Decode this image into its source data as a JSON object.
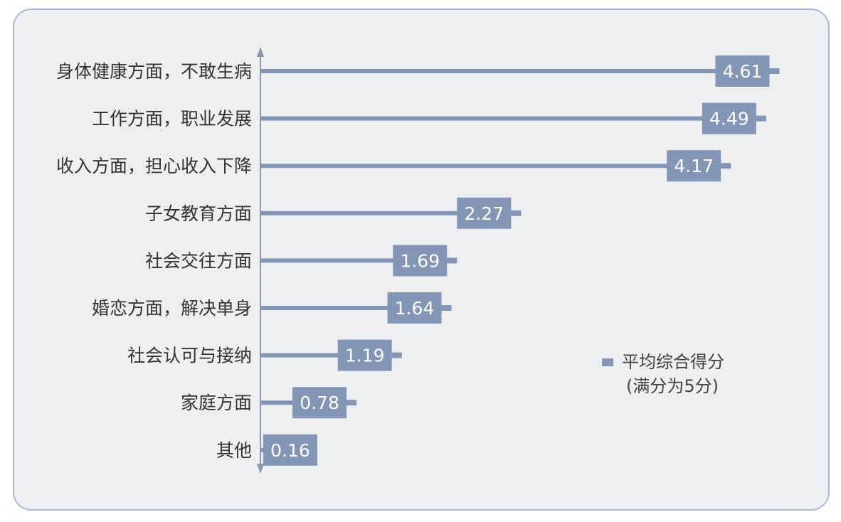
{
  "chart_data": {
    "type": "bar",
    "orientation": "horizontal",
    "categories": [
      "身体健康方面，不敢生病",
      "工作方面，职业发展",
      "收入方面，担心收入下降",
      "子女教育方面",
      "社会交往方面",
      "婚恋方面，解决单身",
      "社会认可与接纳",
      "家庭方面",
      "其他"
    ],
    "series": [
      {
        "name": "平均综合得分",
        "values": [
          4.61,
          4.49,
          4.17,
          2.27,
          1.69,
          1.64,
          1.19,
          0.78,
          0.16
        ],
        "labels": [
          "4.61",
          "4.49",
          "4.17",
          "2.27",
          "1.69",
          "1.64",
          "1.19",
          "0.78",
          "0.16"
        ]
      }
    ],
    "legend": {
      "name": "平均综合得分",
      "note": "(满分为5分)",
      "position": "right"
    },
    "xlim": [
      0,
      5
    ],
    "grid": false,
    "colors": {
      "bar": "#8396b6",
      "axis": "#8a96aa",
      "label_box": "#8396b6"
    }
  }
}
